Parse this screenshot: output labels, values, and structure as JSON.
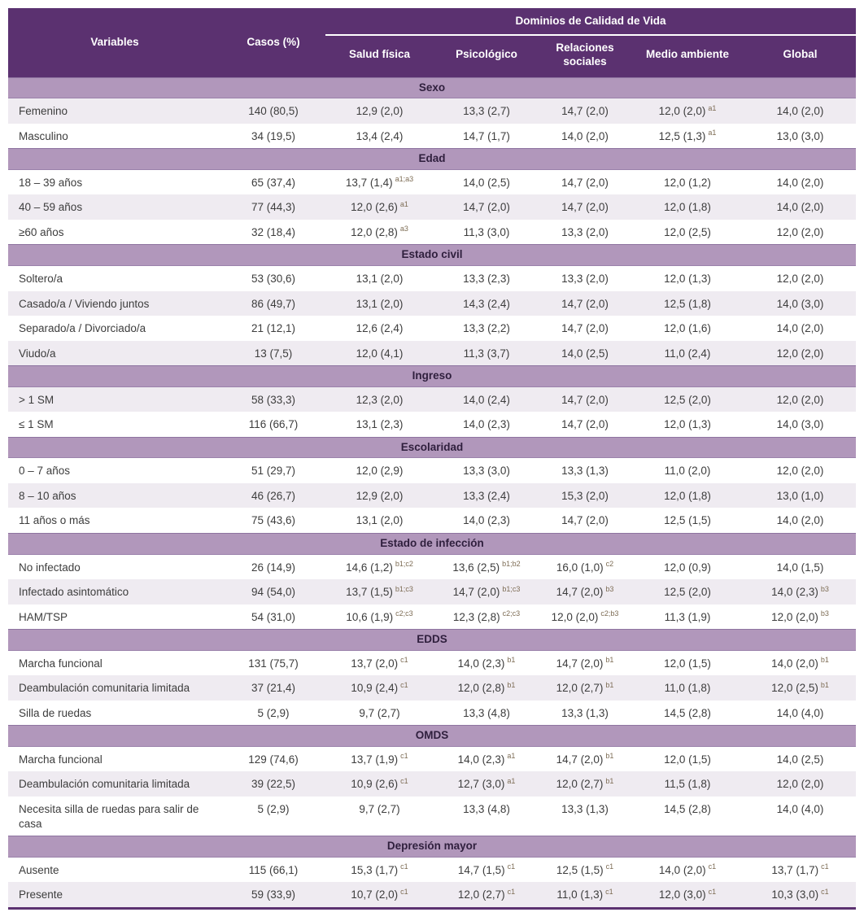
{
  "table": {
    "group_header": "Dominios de Calidad de Vida",
    "col_variables": "Variables",
    "col_casos": "Casos (%)",
    "domain_columns": [
      "Salud física",
      "Psicológico",
      "Relaciones sociales",
      "Medio ambiente",
      "Global"
    ],
    "rows": [
      {
        "type": "section",
        "label": "Sexo"
      },
      {
        "type": "data",
        "variable": "Femenino",
        "casos": "140 (80,5)",
        "values": [
          {
            "v": "12,9 (2,0)"
          },
          {
            "v": "13,3 (2,7)"
          },
          {
            "v": "14,7 (2,0)"
          },
          {
            "v": "12,0 (2,0)",
            "sup": "a1"
          },
          {
            "v": "14,0 (2,0)"
          }
        ]
      },
      {
        "type": "data",
        "variable": "Masculino",
        "casos": "34 (19,5)",
        "values": [
          {
            "v": "13,4 (2,4)"
          },
          {
            "v": "14,7 (1,7)"
          },
          {
            "v": "14,0 (2,0)"
          },
          {
            "v": "12,5 (1,3)",
            "sup": "a1"
          },
          {
            "v": "13,0 (3,0)"
          }
        ]
      },
      {
        "type": "section",
        "label": "Edad"
      },
      {
        "type": "data",
        "variable": "18 – 39 años",
        "casos": "65 (37,4)",
        "values": [
          {
            "v": "13,7 (1,4)",
            "sup": "a1;a3"
          },
          {
            "v": "14,0 (2,5)"
          },
          {
            "v": "14,7 (2,0)"
          },
          {
            "v": "12,0 (1,2)"
          },
          {
            "v": "14,0 (2,0)"
          }
        ]
      },
      {
        "type": "data",
        "variable": "40 – 59 años",
        "casos": "77 (44,3)",
        "values": [
          {
            "v": "12,0 (2,6)",
            "sup": "a1"
          },
          {
            "v": "14,7 (2,0)"
          },
          {
            "v": "14,7 (2,0)"
          },
          {
            "v": "12,0 (1,8)"
          },
          {
            "v": "14,0 (2,0)"
          }
        ]
      },
      {
        "type": "data",
        "variable": "≥60 años",
        "casos": "32 (18,4)",
        "values": [
          {
            "v": "12,0 (2,8)",
            "sup": "a3"
          },
          {
            "v": "11,3 (3,0)"
          },
          {
            "v": "13,3 (2,0)"
          },
          {
            "v": "12,0 (2,5)"
          },
          {
            "v": "12,0 (2,0)"
          }
        ]
      },
      {
        "type": "section",
        "label": "Estado civil"
      },
      {
        "type": "data",
        "variable": "Soltero/a",
        "casos": "53 (30,6)",
        "values": [
          {
            "v": "13,1 (2,0)"
          },
          {
            "v": "13,3 (2,3)"
          },
          {
            "v": "13,3 (2,0)"
          },
          {
            "v": "12,0 (1,3)"
          },
          {
            "v": "12,0 (2,0)"
          }
        ]
      },
      {
        "type": "data",
        "variable": "Casado/a / Viviendo juntos",
        "casos": "86 (49,7)",
        "values": [
          {
            "v": "13,1 (2,0)"
          },
          {
            "v": "14,3 (2,4)"
          },
          {
            "v": "14,7 (2,0)"
          },
          {
            "v": "12,5 (1,8)"
          },
          {
            "v": "14,0 (3,0)"
          }
        ]
      },
      {
        "type": "data",
        "variable": "Separado/a / Divorciado/a",
        "casos": "21 (12,1)",
        "values": [
          {
            "v": "12,6 (2,4)"
          },
          {
            "v": "13,3 (2,2)"
          },
          {
            "v": "14,7 (2,0)"
          },
          {
            "v": "12,0 (1,6)"
          },
          {
            "v": "14,0 (2,0)"
          }
        ]
      },
      {
        "type": "data",
        "variable": "Viudo/a",
        "casos": "13 (7,5)",
        "values": [
          {
            "v": "12,0 (4,1)"
          },
          {
            "v": "11,3 (3,7)"
          },
          {
            "v": "14,0 (2,5)"
          },
          {
            "v": "11,0 (2,4)"
          },
          {
            "v": "12,0 (2,0)"
          }
        ]
      },
      {
        "type": "section",
        "label": "Ingreso"
      },
      {
        "type": "data",
        "variable": "> 1 SM",
        "casos": "58 (33,3)",
        "values": [
          {
            "v": "12,3 (2,0)"
          },
          {
            "v": "14,0 (2,4)"
          },
          {
            "v": "14,7 (2,0)"
          },
          {
            "v": "12,5 (2,0)"
          },
          {
            "v": "12,0 (2,0)"
          }
        ]
      },
      {
        "type": "data",
        "variable": "≤ 1 SM",
        "casos": "116 (66,7)",
        "values": [
          {
            "v": "13,1 (2,3)"
          },
          {
            "v": "14,0 (2,3)"
          },
          {
            "v": "14,7 (2,0)"
          },
          {
            "v": "12,0 (1,3)"
          },
          {
            "v": "14,0 (3,0)"
          }
        ]
      },
      {
        "type": "section",
        "label": "Escolaridad"
      },
      {
        "type": "data",
        "variable": "0 – 7 años",
        "casos": "51 (29,7)",
        "values": [
          {
            "v": "12,0 (2,9)"
          },
          {
            "v": "13,3 (3,0)"
          },
          {
            "v": "13,3 (1,3)"
          },
          {
            "v": "11,0 (2,0)"
          },
          {
            "v": "12,0 (2,0)"
          }
        ]
      },
      {
        "type": "data",
        "variable": "8 – 10 años",
        "casos": "46 (26,7)",
        "values": [
          {
            "v": "12,9 (2,0)"
          },
          {
            "v": "13,3 (2,4)"
          },
          {
            "v": "15,3 (2,0)"
          },
          {
            "v": "12,0 (1,8)"
          },
          {
            "v": "13,0 (1,0)"
          }
        ]
      },
      {
        "type": "data",
        "variable": "11 años o más",
        "casos": "75 (43,6)",
        "values": [
          {
            "v": "13,1 (2,0)"
          },
          {
            "v": "14,0 (2,3)"
          },
          {
            "v": "14,7 (2,0)"
          },
          {
            "v": "12,5 (1,5)"
          },
          {
            "v": "14,0 (2,0)"
          }
        ]
      },
      {
        "type": "section",
        "label": "Estado de infección"
      },
      {
        "type": "data",
        "variable": "No infectado",
        "casos": "26 (14,9)",
        "values": [
          {
            "v": "14,6 (1,2)",
            "sup": "b1;c2"
          },
          {
            "v": "13,6 (2,5)",
            "sup": "b1;b2"
          },
          {
            "v": "16,0 (1,0)",
            "sup": "c2"
          },
          {
            "v": "12,0 (0,9)"
          },
          {
            "v": "14,0 (1,5)"
          }
        ]
      },
      {
        "type": "data",
        "variable": "Infectado asintomático",
        "casos": "94 (54,0)",
        "values": [
          {
            "v": "13,7 (1,5)",
            "sup": "b1;c3"
          },
          {
            "v": "14,7 (2,0)",
            "sup": "b1;c3"
          },
          {
            "v": "14,7 (2,0)",
            "sup": "b3"
          },
          {
            "v": "12,5 (2,0)"
          },
          {
            "v": "14,0 (2,3)",
            "sup": "b3"
          }
        ]
      },
      {
        "type": "data",
        "variable": "HAM/TSP",
        "casos": "54 (31,0)",
        "values": [
          {
            "v": "10,6 (1,9)",
            "sup": "c2;c3"
          },
          {
            "v": "12,3 (2,8)",
            "sup": "c2;c3"
          },
          {
            "v": "12,0 (2,0)",
            "sup": "c2;b3"
          },
          {
            "v": "11,3 (1,9)"
          },
          {
            "v": "12,0 (2,0)",
            "sup": "b3"
          }
        ]
      },
      {
        "type": "section",
        "label": "EDDS"
      },
      {
        "type": "data",
        "variable": "Marcha funcional",
        "casos": "131 (75,7)",
        "values": [
          {
            "v": "13,7 (2,0)",
            "sup": "c1"
          },
          {
            "v": "14,0 (2,3)",
            "sup": "b1"
          },
          {
            "v": "14,7 (2,0)",
            "sup": "b1"
          },
          {
            "v": "12,0 (1,5)"
          },
          {
            "v": "14,0 (2,0)",
            "sup": "b1"
          }
        ]
      },
      {
        "type": "data",
        "variable": "Deambulación comunitaria limitada",
        "casos": "37 (21,4)",
        "values": [
          {
            "v": "10,9 (2,4)",
            "sup": "c1"
          },
          {
            "v": "12,0 (2,8)",
            "sup": "b1"
          },
          {
            "v": "12,0 (2,7)",
            "sup": "b1"
          },
          {
            "v": "11,0 (1,8)"
          },
          {
            "v": "12,0 (2,5)",
            "sup": "b1"
          }
        ]
      },
      {
        "type": "data",
        "variable": "Silla de ruedas",
        "casos": "5 (2,9)",
        "values": [
          {
            "v": "9,7 (2,7)"
          },
          {
            "v": "13,3 (4,8)"
          },
          {
            "v": "13,3 (1,3)"
          },
          {
            "v": "14,5 (2,8)"
          },
          {
            "v": "14,0 (4,0)"
          }
        ]
      },
      {
        "type": "section",
        "label": "OMDS"
      },
      {
        "type": "data",
        "variable": "Marcha funcional",
        "casos": "129 (74,6)",
        "values": [
          {
            "v": "13,7 (1,9)",
            "sup": "c1"
          },
          {
            "v": "14,0 (2,3)",
            "sup": "a1"
          },
          {
            "v": "14,7 (2,0)",
            "sup": "b1"
          },
          {
            "v": "12,0 (1,5)"
          },
          {
            "v": "14,0 (2,5)"
          }
        ]
      },
      {
        "type": "data",
        "variable": "Deambulación comunitaria limitada",
        "casos": "39 (22,5)",
        "values": [
          {
            "v": "10,9 (2,6)",
            "sup": "c1"
          },
          {
            "v": "12,7 (3,0)",
            "sup": "a1"
          },
          {
            "v": "12,0 (2,7)",
            "sup": "b1"
          },
          {
            "v": "11,5 (1,8)"
          },
          {
            "v": "12,0 (2,0)"
          }
        ]
      },
      {
        "type": "data",
        "variable": "Necesita silla de ruedas para salir de casa",
        "casos": "5 (2,9)",
        "values": [
          {
            "v": "9,7 (2,7)"
          },
          {
            "v": "13,3 (4,8)"
          },
          {
            "v": "13,3 (1,3)"
          },
          {
            "v": "14,5 (2,8)"
          },
          {
            "v": "14,0 (4,0)"
          }
        ]
      },
      {
        "type": "section",
        "label": "Depresión mayor"
      },
      {
        "type": "data",
        "variable": "Ausente",
        "casos": "115 (66,1)",
        "values": [
          {
            "v": "15,3 (1,7)",
            "sup": "c1"
          },
          {
            "v": "14,7 (1,5)",
            "sup": "c1"
          },
          {
            "v": "12,5 (1,5)",
            "sup": "c1"
          },
          {
            "v": "14,0 (2,0)",
            "sup": "c1"
          },
          {
            "v": "13,7 (1,7)",
            "sup": "c1"
          }
        ]
      },
      {
        "type": "data",
        "variable": "Presente",
        "casos": "59 (33,9)",
        "values": [
          {
            "v": "10,7 (2,0)",
            "sup": "c1"
          },
          {
            "v": "12,0 (2,7)",
            "sup": "c1"
          },
          {
            "v": "11,0 (1,3)",
            "sup": "c1"
          },
          {
            "v": "12,0 (3,0)",
            "sup": "c1"
          },
          {
            "v": "10,3 (3,0)",
            "sup": "c1"
          }
        ]
      }
    ]
  },
  "colors": {
    "header_bg": "#5b3170",
    "section_bg": "#b197bb",
    "zebra_bg": "#efebf1",
    "bottom_border": "#5b3170",
    "superscript": "#7d6c54"
  }
}
